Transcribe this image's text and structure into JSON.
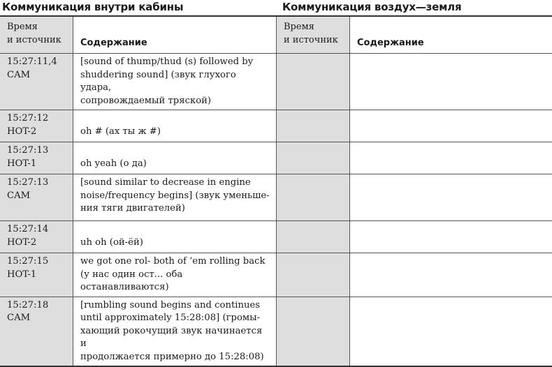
{
  "sections": {
    "cabin_title": "Коммуникация внутри кабины",
    "air_ground_title": "Коммуникация воздух—земля"
  },
  "headers": {
    "time_source": "Время\nи источник",
    "content": "Содержание",
    "time_source_2": "Время\nи источник",
    "content_2": "Содержание"
  },
  "rows": [
    {
      "time": "15:27:11,4\nCAM",
      "content": "[sound of thump/thud (s) followed by\nshuddering sound] (звук глухого удара,\nсопровождаемый тряской)"
    },
    {
      "time": "15:27:12\nHOT-2",
      "content": "oh # (ах ты ж #)"
    },
    {
      "time": "15:27:13\nHOT-1",
      "content": "oh yeah (о да)"
    },
    {
      "time": "15:27:13\nCAM",
      "content": "[sound similar to decrease in engine\nnoise/frequency begins] (звук уменьше-\nния тяги двигателей)"
    },
    {
      "time": "15:27:14\nHOT-2",
      "content": "uh oh (ой-ёй)"
    },
    {
      "time": "15:27:15\nHOT-1",
      "content": "we got one rol- both of ’em rolling back\n(у нас один ост... оба останавливаются)"
    },
    {
      "time": "15:27:18\nCAM",
      "content": "[rumbling sound begins and continues\nuntil approximately 15:28:08] (громы-\nхающий рокочущий звук начинается и\nпродолжается примерно до 15:28:08)"
    }
  ]
}
